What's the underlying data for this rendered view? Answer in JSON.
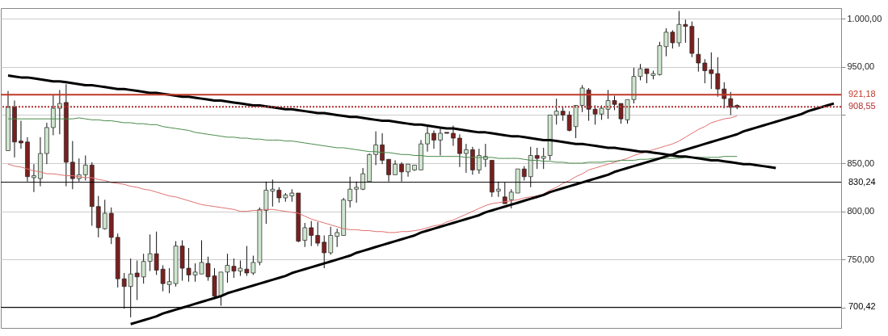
{
  "chart_data": {
    "type": "candlestick",
    "categories": [
      null,
      null,
      null,
      null,
      null,
      null,
      null,
      null,
      null,
      null,
      null,
      null,
      null,
      null,
      null,
      null,
      null,
      null,
      null,
      null,
      null,
      null,
      null,
      null,
      null,
      null,
      null,
      null,
      null,
      null,
      null,
      null,
      null,
      null,
      null,
      null,
      null,
      null,
      null,
      null,
      null,
      null,
      null,
      null,
      null,
      null,
      null,
      null,
      null,
      null,
      null,
      null,
      null,
      null,
      null,
      null,
      null,
      null,
      null,
      null,
      null,
      null,
      null,
      null,
      null,
      null,
      null,
      null,
      null,
      null,
      null,
      null,
      null,
      null,
      null,
      null,
      null,
      null,
      null,
      null,
      null,
      null,
      null,
      null,
      null,
      null,
      null,
      null,
      null,
      null,
      null,
      null,
      null,
      null,
      null,
      null,
      null,
      null,
      null,
      null,
      null,
      null,
      null,
      null,
      null,
      null,
      null,
      null,
      null,
      null,
      null,
      null,
      null,
      null,
      null,
      null,
      null,
      null,
      null,
      null,
      null,
      null,
      null,
      null,
      null,
      null,
      null,
      null,
      null
    ],
    "ohlc": [
      [
        863,
        925,
        863,
        908
      ],
      [
        908,
        915,
        856,
        872
      ],
      [
        873,
        894,
        865,
        871
      ],
      [
        872,
        877,
        831,
        836
      ],
      [
        835,
        849,
        820,
        837
      ],
      [
        834,
        877,
        826,
        860
      ],
      [
        860,
        892,
        849,
        887
      ],
      [
        887,
        921,
        879,
        907
      ],
      [
        907,
        926,
        880,
        912
      ],
      [
        913,
        932,
        826,
        851
      ],
      [
        851,
        873,
        823,
        834
      ],
      [
        834,
        855,
        831,
        838
      ],
      [
        838,
        858,
        832,
        848
      ],
      [
        848,
        851,
        785,
        805
      ],
      [
        805,
        816,
        773,
        783
      ],
      [
        782,
        812,
        781,
        798
      ],
      [
        798,
        804,
        766,
        773
      ],
      [
        773,
        777,
        721,
        730
      ],
      [
        730,
        736,
        699,
        722
      ],
      [
        722,
        751,
        690,
        735
      ],
      [
        736,
        749,
        708,
        732
      ],
      [
        732,
        756,
        725,
        748
      ],
      [
        748,
        776,
        738,
        756
      ],
      [
        756,
        779,
        734,
        739
      ],
      [
        740,
        744,
        717,
        725
      ],
      [
        724,
        741,
        715,
        727
      ],
      [
        725,
        769,
        722,
        764
      ],
      [
        764,
        770,
        728,
        741
      ],
      [
        741,
        762,
        727,
        734
      ],
      [
        734,
        746,
        727,
        737
      ],
      [
        735,
        770,
        735,
        747
      ],
      [
        746,
        753,
        728,
        732
      ],
      [
        733,
        741,
        710,
        712
      ],
      [
        712,
        737,
        702,
        737
      ],
      [
        737,
        756,
        726,
        744
      ],
      [
        743,
        751,
        731,
        738
      ],
      [
        738,
        749,
        733,
        741
      ],
      [
        740,
        764,
        733,
        736
      ],
      [
        736,
        754,
        734,
        747
      ],
      [
        747,
        804,
        744,
        802
      ],
      [
        801,
        831,
        787,
        822
      ],
      [
        821,
        833,
        805,
        823
      ],
      [
        822,
        825,
        809,
        814
      ],
      [
        814,
        819,
        810,
        817
      ],
      [
        816,
        823,
        810,
        819
      ],
      [
        819,
        819,
        768,
        769
      ],
      [
        770,
        788,
        763,
        783
      ],
      [
        783,
        790,
        764,
        775
      ],
      [
        775,
        789,
        764,
        767
      ],
      [
        768,
        775,
        741,
        757
      ],
      [
        757,
        784,
        755,
        775
      ],
      [
        774,
        782,
        763,
        778
      ],
      [
        775,
        814,
        775,
        812
      ],
      [
        811,
        836,
        804,
        823
      ],
      [
        823,
        831,
        809,
        825
      ],
      [
        823,
        845,
        822,
        839
      ],
      [
        831,
        860,
        831,
        859
      ],
      [
        859,
        883,
        848,
        869
      ],
      [
        869,
        881,
        849,
        853
      ],
      [
        854,
        854,
        831,
        838
      ],
      [
        838,
        853,
        838,
        849
      ],
      [
        849,
        851,
        831,
        841
      ],
      [
        841,
        849,
        836,
        849
      ],
      [
        843,
        848,
        842,
        848
      ],
      [
        843,
        874,
        843,
        870
      ],
      [
        870,
        889,
        862,
        881
      ],
      [
        881,
        884,
        865,
        874
      ],
      [
        874,
        886,
        858,
        881
      ],
      [
        882,
        882,
        881,
        881
      ],
      [
        881,
        889,
        868,
        876
      ],
      [
        876,
        880,
        846,
        860
      ],
      [
        860,
        870,
        840,
        864
      ],
      [
        864,
        867,
        838,
        843
      ],
      [
        843,
        865,
        839,
        858
      ],
      [
        854,
        870,
        846,
        857
      ],
      [
        853,
        853,
        815,
        820
      ],
      [
        821,
        831,
        815,
        823
      ],
      [
        815,
        830,
        808,
        808
      ],
      [
        812,
        823,
        803,
        820
      ],
      [
        819,
        844,
        819,
        844
      ],
      [
        844,
        847,
        832,
        836
      ],
      [
        836,
        867,
        825,
        858
      ],
      [
        858,
        866,
        844,
        855
      ],
      [
        855,
        866,
        844,
        857
      ],
      [
        858,
        900,
        853,
        900
      ],
      [
        900,
        917,
        890,
        904
      ],
      [
        904,
        908,
        894,
        900
      ],
      [
        900,
        904,
        883,
        884
      ],
      [
        888,
        910,
        876,
        910
      ],
      [
        910,
        931,
        903,
        928
      ],
      [
        926,
        928,
        894,
        906
      ],
      [
        906,
        910,
        890,
        901
      ],
      [
        901,
        910,
        895,
        907
      ],
      [
        906,
        926,
        896,
        915
      ],
      [
        915,
        920,
        905,
        911
      ],
      [
        912,
        912,
        891,
        896
      ],
      [
        895,
        916,
        891,
        916
      ],
      [
        916,
        949,
        912,
        940
      ],
      [
        940,
        953,
        936,
        948
      ],
      [
        948,
        948,
        933,
        943
      ],
      [
        941,
        946,
        937,
        943
      ],
      [
        942,
        976,
        941,
        972
      ],
      [
        971,
        990,
        961,
        986
      ],
      [
        986,
        988,
        969,
        975
      ],
      [
        975,
        1008,
        971,
        994
      ],
      [
        994,
        999,
        975,
        992
      ],
      [
        992,
        997,
        960,
        964
      ],
      [
        963,
        980,
        945,
        954
      ],
      [
        954,
        958,
        933,
        946
      ],
      [
        947,
        965,
        927,
        943
      ],
      [
        943,
        960,
        919,
        927
      ],
      [
        927,
        934,
        907,
        917
      ],
      [
        917,
        924,
        900,
        908
      ],
      [
        910,
        911,
        906,
        908
      ],
      null,
      null,
      null,
      null,
      null,
      null,
      null,
      null,
      null,
      null,
      null,
      null,
      null,
      null,
      null
    ],
    "colors": [
      "#cfe6cf",
      "#7a1f1f",
      "#7a1f1f",
      "#7a1f1f",
      "#cfe6cf",
      "#cfe6cf",
      "#cfe6cf",
      "#cfe6cf",
      "#cfe6cf",
      "#7a1f1f",
      "#7a1f1f",
      "#cfe6cf",
      "#cfe6cf",
      "#7a1f1f",
      "#7a1f1f",
      "#cfe6cf",
      "#7a1f1f",
      "#7a1f1f",
      "#7a1f1f",
      "#cfe6cf",
      "#7a1f1f",
      "#cfe6cf",
      "#cfe6cf",
      "#7a1f1f",
      "#7a1f1f",
      "#cfe6cf",
      "#cfe6cf",
      "#7a1f1f",
      "#7a1f1f",
      "#cfe6cf",
      "#cfe6cf",
      "#7a1f1f",
      "#7a1f1f",
      "#cfe6cf",
      "#cfe6cf",
      "#7a1f1f",
      "#cfe6cf",
      "#7a1f1f",
      "#cfe6cf",
      "#cfe6cf",
      "#cfe6cf",
      "#cfe6cf",
      "#7a1f1f",
      "#cfe6cf",
      "#cfe6cf",
      "#7a1f1f",
      "#cfe6cf",
      "#7a1f1f",
      "#7a1f1f",
      "#7a1f1f",
      "#cfe6cf",
      "#cfe6cf",
      "#cfe6cf",
      "#cfe6cf",
      "#cfe6cf",
      "#cfe6cf",
      "#cfe6cf",
      "#cfe6cf",
      "#7a1f1f",
      "#7a1f1f",
      "#cfe6cf",
      "#7a1f1f",
      "#cfe6cf",
      "#cfe6cf",
      "#cfe6cf",
      "#cfe6cf",
      "#7a1f1f",
      "#cfe6cf",
      "#7a1f1f",
      "#7a1f1f",
      "#7a1f1f",
      "#cfe6cf",
      "#7a1f1f",
      "#cfe6cf",
      "#cfe6cf",
      "#7a1f1f",
      "#cfe6cf",
      "#7a1f1f",
      "#cfe6cf",
      "#cfe6cf",
      "#7a1f1f",
      "#cfe6cf",
      "#7a1f1f",
      "#cfe6cf",
      "#cfe6cf",
      "#cfe6cf",
      "#7a1f1f",
      "#7a1f1f",
      "#cfe6cf",
      "#cfe6cf",
      "#7a1f1f",
      "#7a1f1f",
      "#cfe6cf",
      "#cfe6cf",
      "#7a1f1f",
      "#7a1f1f",
      "#cfe6cf",
      "#cfe6cf",
      "#cfe6cf",
      "#7a1f1f",
      "#cfe6cf",
      "#cfe6cf",
      "#cfe6cf",
      "#7a1f1f",
      "#cfe6cf",
      "#7a1f1f",
      "#7a1f1f",
      "#7a1f1f",
      "#7a1f1f",
      "#7a1f1f",
      "#7a1f1f",
      "#7a1f1f",
      "#7a1f1f",
      "#7a1f1f",
      null,
      null,
      null,
      null,
      null,
      null,
      null,
      null,
      null,
      null,
      null,
      null,
      null,
      null,
      null
    ],
    "series": [
      {
        "type": "line",
        "color": "#e07070",
        "values": [
          849,
          847,
          846,
          844,
          842,
          841,
          839,
          839,
          838,
          837,
          837,
          836,
          835,
          835,
          833,
          832,
          830,
          829,
          828,
          826,
          825,
          823,
          822,
          820,
          818,
          816,
          815,
          813,
          811,
          809,
          807,
          806,
          805,
          804,
          803,
          802,
          800,
          800,
          801,
          801,
          802,
          802,
          801,
          800,
          799,
          798,
          795,
          792,
          790,
          788,
          786,
          784,
          782,
          781,
          781,
          780,
          780,
          779,
          779,
          778,
          778,
          779,
          779,
          780,
          781,
          783,
          785,
          786,
          789,
          791,
          794,
          797,
          800,
          803,
          806,
          808,
          809,
          810,
          811,
          812,
          814,
          815,
          816,
          818,
          822,
          825,
          829,
          832,
          836,
          839,
          843,
          845,
          847,
          849,
          851,
          853,
          855,
          858,
          860,
          862,
          864,
          866,
          868,
          870,
          873,
          877,
          881,
          885,
          888,
          892,
          894,
          896,
          897,
          899,
          null,
          null,
          null,
          null,
          null,
          null,
          null,
          null,
          null,
          null,
          null,
          null,
          null,
          null,
          null
        ]
      },
      {
        "type": "line",
        "color": "#4a8a4a",
        "values": [
          896,
          896,
          896,
          896,
          896,
          896,
          896,
          896,
          896,
          896,
          896,
          897,
          896,
          895,
          895,
          894,
          894,
          893,
          892,
          892,
          891,
          891,
          890,
          890,
          888,
          887,
          886,
          885,
          884,
          882,
          881,
          880,
          879,
          878,
          877,
          877,
          876,
          876,
          875,
          875,
          874,
          874,
          874,
          873,
          873,
          872,
          871,
          870,
          869,
          868,
          867,
          866,
          866,
          865,
          864,
          863,
          862,
          862,
          861,
          861,
          860,
          859,
          859,
          858,
          858,
          857,
          857,
          857,
          857,
          857,
          857,
          856,
          856,
          856,
          856,
          856,
          855,
          855,
          855,
          855,
          854,
          853,
          853,
          852,
          852,
          851,
          851,
          850,
          850,
          850,
          851,
          851,
          851,
          852,
          852,
          853,
          853,
          853,
          854,
          854,
          855,
          855,
          855,
          855,
          855,
          856,
          856,
          856,
          856,
          856,
          856,
          857,
          857,
          857,
          null,
          null,
          null,
          null,
          null,
          null,
          null,
          null,
          null,
          null,
          null,
          null,
          null,
          null,
          null
        ]
      },
      {
        "type": "line",
        "color": "#000000",
        "values": [
          941,
          940,
          939,
          939,
          938,
          937,
          936,
          935,
          935,
          934,
          933,
          932,
          931,
          931,
          930,
          929,
          928,
          927,
          927,
          926,
          925,
          924,
          923,
          923,
          922,
          921,
          920,
          919,
          919,
          918,
          917,
          916,
          915,
          915,
          914,
          913,
          912,
          911,
          910,
          910,
          909,
          908,
          907,
          906,
          906,
          905,
          904,
          903,
          902,
          902,
          901,
          900,
          899,
          898,
          898,
          897,
          896,
          895,
          894,
          894,
          893,
          892,
          891,
          890,
          890,
          889,
          888,
          887,
          886,
          886,
          885,
          884,
          883,
          882,
          882,
          881,
          880,
          879,
          878,
          878,
          877,
          876,
          875,
          874,
          874,
          873,
          872,
          871,
          870,
          870,
          869,
          868,
          867,
          866,
          866,
          865,
          864,
          863,
          862,
          862,
          861,
          860,
          859,
          858,
          857,
          857,
          856,
          855,
          854,
          853,
          853,
          852,
          851,
          850,
          849,
          849,
          848,
          847,
          846,
          845,
          null,
          null,
          null,
          null,
          null,
          null,
          null,
          null,
          null
        ]
      },
      {
        "type": "line",
        "color": "#000000",
        "values": [
          null,
          null,
          null,
          null,
          null,
          null,
          null,
          null,
          null,
          null,
          null,
          null,
          null,
          null,
          null,
          null,
          null,
          null,
          null,
          683,
          685,
          687,
          689,
          691,
          694,
          696,
          698,
          700,
          702,
          704,
          706,
          708,
          710,
          712,
          715,
          717,
          719,
          721,
          723,
          725,
          727,
          729,
          731,
          733,
          736,
          738,
          740,
          742,
          744,
          746,
          748,
          750,
          752,
          754,
          757,
          759,
          761,
          763,
          765,
          767,
          769,
          771,
          773,
          775,
          778,
          780,
          782,
          784,
          786,
          788,
          790,
          792,
          794,
          796,
          799,
          801,
          803,
          805,
          807,
          809,
          811,
          813,
          815,
          817,
          820,
          822,
          824,
          826,
          828,
          830,
          832,
          834,
          836,
          838,
          841,
          843,
          845,
          847,
          849,
          851,
          853,
          855,
          857,
          859,
          862,
          864,
          866,
          868,
          870,
          872,
          874,
          876,
          878,
          880,
          883,
          885,
          887,
          889,
          891,
          893,
          895,
          897,
          899,
          901,
          904,
          906,
          908,
          910,
          912
        ]
      }
    ],
    "ref_lines": [
      {
        "axis": "y",
        "value": 921.18,
        "label": "921,18",
        "color": "#c0392b",
        "line_style": "solid"
      },
      {
        "axis": "y",
        "value": 908.55,
        "label": "908,55",
        "color": "#b03030",
        "line_style": "dotted"
      },
      {
        "axis": "y",
        "value": 830.24,
        "label": "830,24",
        "color": "#000000",
        "line_style": "solid"
      },
      {
        "axis": "y",
        "value": 700.42,
        "label": "700,42",
        "color": "#000000",
        "line_style": "solid"
      }
    ],
    "ylim": [
      679,
      1011
    ],
    "yticks": [
      {
        "value": 700,
        "label": null
      },
      {
        "value": 750,
        "label": "750,00"
      },
      {
        "value": 800,
        "label": "800,00"
      },
      {
        "value": 850,
        "label": "850,00"
      },
      {
        "value": 900,
        "label": null
      },
      {
        "value": 950,
        "label": "950,00"
      },
      {
        "value": 1000,
        "label": "1.000,00"
      }
    ],
    "grid": "y",
    "tick_labels": "y"
  }
}
